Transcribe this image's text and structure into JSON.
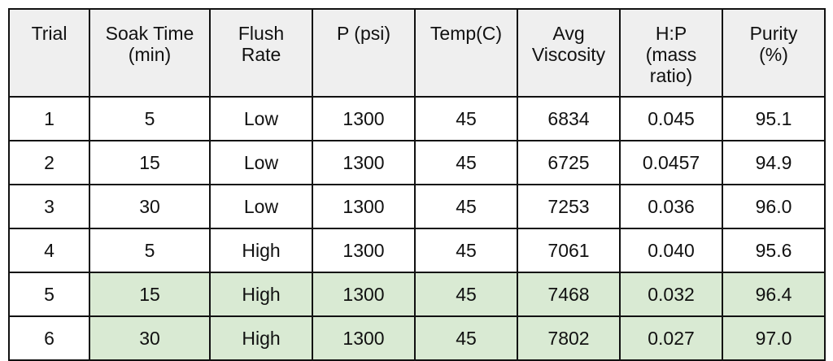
{
  "table": {
    "columns": [
      [
        "Trial"
      ],
      [
        "Soak Time",
        "(min)"
      ],
      [
        "Flush",
        "Rate"
      ],
      [
        "P (psi)"
      ],
      [
        "Temp(C)"
      ],
      [
        "Avg",
        "Viscosity"
      ],
      [
        "H:P",
        "(mass",
        "ratio)"
      ],
      [
        "Purity",
        "(%)"
      ]
    ],
    "rows": [
      {
        "cells": [
          "1",
          "5",
          "Low",
          "1300",
          "45",
          "6834",
          "0.045",
          "95.1"
        ],
        "highlight": false
      },
      {
        "cells": [
          "2",
          "15",
          "Low",
          "1300",
          "45",
          "6725",
          "0.0457",
          "94.9"
        ],
        "highlight": false
      },
      {
        "cells": [
          "3",
          "30",
          "Low",
          "1300",
          "45",
          "7253",
          "0.036",
          "96.0"
        ],
        "highlight": false
      },
      {
        "cells": [
          "4",
          "5",
          "High",
          "1300",
          "45",
          "7061",
          "0.040",
          "95.6"
        ],
        "highlight": false
      },
      {
        "cells": [
          "5",
          "15",
          "High",
          "1300",
          "45",
          "7468",
          "0.032",
          "96.4"
        ],
        "highlight": true
      },
      {
        "cells": [
          "6",
          "30",
          "High",
          "1300",
          "45",
          "7802",
          "0.027",
          "97.0"
        ],
        "highlight": true
      }
    ],
    "colors": {
      "header_bg": "#efefef",
      "highlight_bg": "#d9ead3",
      "border": "#111111"
    }
  }
}
